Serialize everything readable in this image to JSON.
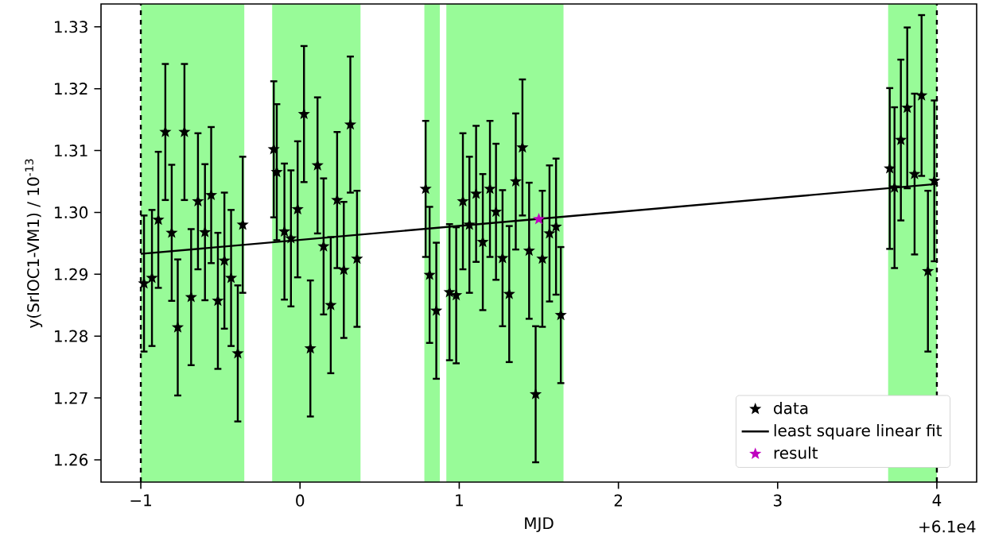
{
  "chart_data": {
    "type": "scatter",
    "xlabel": "MJD",
    "ylabel": "y(SrIOC1-VM1)   / 10$^{-13}$",
    "xlim": [
      -1.25,
      4.25
    ],
    "ylim": [
      1.2564,
      1.3337
    ],
    "xticks": [
      {
        "value": -1,
        "label": "−1"
      },
      0,
      1,
      2,
      3,
      4
    ],
    "yticks": [
      1.26,
      1.27,
      1.28,
      1.29,
      {
        "value": 1.3,
        "label": "1.30"
      },
      1.31,
      1.32,
      1.33
    ],
    "marker": "star",
    "legend": "bottom right",
    "annotations": [
      "+6.1e4"
    ],
    "ref_lines": [
      {
        "axis": "x",
        "value": -1,
        "color": "#000000",
        "line_style": "dashed"
      },
      {
        "axis": "x",
        "value": 4,
        "color": "#000000",
        "line_style": "dashed"
      }
    ],
    "bands": [
      {
        "axis": "x",
        "from": -1,
        "to": -0.35,
        "color": "#98fb98"
      },
      {
        "axis": "x",
        "from": -0.175,
        "to": 0.38,
        "color": "#98fb98"
      },
      {
        "axis": "x",
        "from": 0.781,
        "to": 0.878,
        "color": "#98fb98"
      },
      {
        "axis": "x",
        "from": 0.919,
        "to": 1.655,
        "color": "#98fb98"
      },
      {
        "axis": "x",
        "from": 3.694,
        "to": 4,
        "color": "#98fb98"
      }
    ],
    "series": [
      {
        "name": "data",
        "color": "#000000",
        "x": [
          -0.98,
          -0.93,
          -0.89,
          -0.846,
          -0.806,
          -0.768,
          -0.726,
          -0.684,
          -0.641,
          -0.597,
          -0.558,
          -0.516,
          -0.475,
          -0.433,
          -0.391,
          -0.36,
          -0.165,
          -0.146,
          -0.098,
          -0.057,
          -0.015,
          0.025,
          0.065,
          0.11,
          0.148,
          0.193,
          0.233,
          0.275,
          0.316,
          0.358,
          0.789,
          0.814,
          0.856,
          0.939,
          0.981,
          1.023,
          1.064,
          1.106,
          1.148,
          1.193,
          1.231,
          1.272,
          1.314,
          1.355,
          1.397,
          1.439,
          1.48,
          1.522,
          1.567,
          1.608,
          1.638,
          3.704,
          3.734,
          3.774,
          3.814,
          3.86,
          3.904,
          3.944,
          3.984
        ],
        "values": [
          1.2885,
          1.2894,
          1.2988,
          1.313,
          1.2967,
          1.2814,
          1.313,
          1.2863,
          1.3018,
          1.2968,
          1.3028,
          1.2857,
          1.2922,
          1.2894,
          1.2772,
          1.298,
          1.3102,
          1.3065,
          1.2969,
          1.2958,
          1.3005,
          1.3159,
          1.278,
          1.3076,
          1.2945,
          1.285,
          1.302,
          1.2907,
          1.3142,
          1.2925,
          1.3038,
          1.2899,
          1.2841,
          1.2871,
          1.2866,
          1.3018,
          1.298,
          1.303,
          1.2952,
          1.3038,
          1.3001,
          1.2926,
          1.2868,
          1.305,
          1.3105,
          1.2938,
          1.2706,
          1.2925,
          1.2966,
          1.2977,
          1.2834,
          1.3071,
          1.304,
          1.3117,
          1.3169,
          1.3062,
          1.3189,
          1.2905,
          1.3051
        ],
        "errors": [
          0.011,
          0.011,
          0.011,
          0.011,
          0.011,
          0.011,
          0.011,
          0.011,
          0.011,
          0.011,
          0.011,
          0.011,
          0.011,
          0.011,
          0.011,
          0.011,
          0.011,
          0.011,
          0.011,
          0.011,
          0.011,
          0.011,
          0.011,
          0.011,
          0.011,
          0.011,
          0.011,
          0.011,
          0.011,
          0.011,
          0.011,
          0.011,
          0.011,
          0.011,
          0.011,
          0.011,
          0.011,
          0.011,
          0.011,
          0.011,
          0.011,
          0.011,
          0.011,
          0.011,
          0.011,
          0.011,
          0.011,
          0.011,
          0.011,
          0.011,
          0.011,
          0.013,
          0.013,
          0.013,
          0.013,
          0.013,
          0.013,
          0.013,
          0.013
        ]
      },
      {
        "name": "least square linear fit",
        "type": "line",
        "marker": "none",
        "color": "#000000",
        "x": [
          -1,
          4
        ],
        "values": [
          1.2933,
          1.3046
        ]
      },
      {
        "name": "result",
        "color": "#bf00bf",
        "x": [
          1.5
        ],
        "values": [
          1.2989
        ]
      }
    ]
  }
}
